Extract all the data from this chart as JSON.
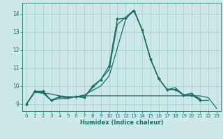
{
  "xlabel": "Humidex (Indice chaleur)",
  "bg_color": "#cce8e8",
  "grid_color": "#aacccc",
  "line_color": "#1a6e6a",
  "xlim": [
    -0.5,
    23.5
  ],
  "ylim": [
    8.6,
    14.6
  ],
  "yticks": [
    9,
    10,
    11,
    12,
    13,
    14
  ],
  "xticks": [
    0,
    1,
    2,
    3,
    4,
    5,
    6,
    7,
    8,
    9,
    10,
    11,
    12,
    13,
    14,
    15,
    16,
    17,
    18,
    19,
    20,
    21,
    22,
    23
  ],
  "series": [
    {
      "x": [
        0,
        1,
        2,
        3,
        4,
        5,
        6,
        7,
        8,
        9,
        10,
        11,
        12,
        13,
        14,
        15,
        16,
        17,
        18,
        19,
        20,
        21
      ],
      "y": [
        9.0,
        9.7,
        9.7,
        9.2,
        9.4,
        9.35,
        9.4,
        9.35,
        10.0,
        10.35,
        11.1,
        13.7,
        13.75,
        14.15,
        13.1,
        11.5,
        10.4,
        9.8,
        9.8,
        9.5,
        9.5,
        9.2
      ],
      "marker": "D",
      "markersize": 2.0,
      "linewidth": 1.0
    },
    {
      "x": [
        0,
        1,
        2,
        3,
        4,
        5,
        6,
        7,
        8,
        9,
        10,
        11,
        12,
        13,
        14,
        15,
        16,
        17,
        18,
        19,
        20,
        21,
        22,
        23
      ],
      "y": [
        9.0,
        9.65,
        9.6,
        9.55,
        9.45,
        9.4,
        9.4,
        9.45,
        9.45,
        9.45,
        9.45,
        9.45,
        9.45,
        9.45,
        9.45,
        9.45,
        9.45,
        9.45,
        9.45,
        9.45,
        9.45,
        9.45,
        9.35,
        8.75
      ],
      "marker": null,
      "markersize": 0,
      "linewidth": 0.9
    },
    {
      "x": [
        0,
        1,
        2,
        3,
        4,
        5,
        6,
        7,
        8,
        9,
        10,
        11,
        12,
        13,
        14,
        15,
        16,
        17,
        18,
        19,
        20,
        21,
        22
      ],
      "y": [
        9.0,
        9.65,
        9.6,
        9.2,
        9.3,
        9.3,
        9.4,
        9.5,
        9.75,
        10.0,
        10.55,
        12.1,
        13.7,
        14.2,
        13.1,
        11.5,
        10.4,
        9.8,
        9.9,
        9.5,
        9.6,
        9.2,
        9.2
      ],
      "marker": null,
      "markersize": 0,
      "linewidth": 0.9
    },
    {
      "x": [
        0,
        1,
        2,
        3,
        4,
        5,
        6,
        7,
        8,
        9,
        10,
        11,
        12,
        13,
        14,
        15,
        16,
        17,
        18,
        19,
        20,
        21
      ],
      "y": [
        9.0,
        9.65,
        9.65,
        9.2,
        9.4,
        9.35,
        9.4,
        9.4,
        9.9,
        10.35,
        10.9,
        13.4,
        13.8,
        14.2,
        13.1,
        11.5,
        10.4,
        9.8,
        9.8,
        9.5,
        9.5,
        9.3
      ],
      "marker": null,
      "markersize": 0,
      "linewidth": 0.9
    }
  ]
}
